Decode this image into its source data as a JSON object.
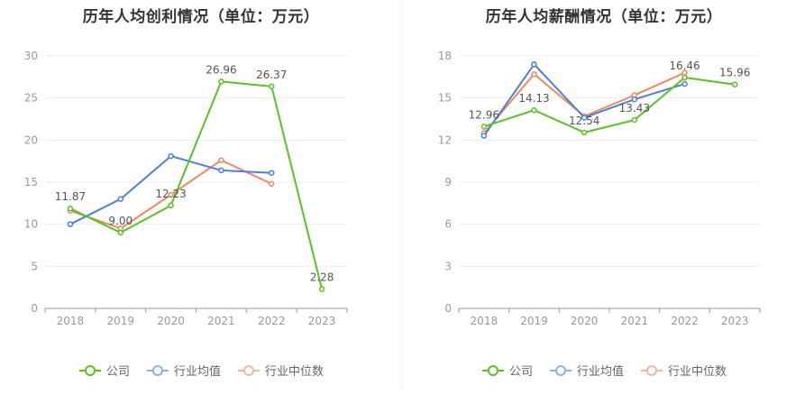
{
  "charts": [
    {
      "title": "历年人均创利情况（单位：万元）",
      "legend": [
        "公司",
        "行业均值",
        "行业中位数"
      ],
      "colors": [
        "#58c322",
        "#4a7fe0",
        "#f08a5d"
      ]
    },
    {
      "title": "历年人均薪酬情况（单位：万元）",
      "legend": [
        "公司",
        "行业均值",
        "行业中位数"
      ],
      "colors": [
        "#58c322",
        "#4a7fe0",
        "#f08a5d"
      ]
    }
  ],
  "chart_data": [
    {
      "type": "line",
      "title": "历年人均创利情况（单位：万元）",
      "categories": [
        "2018",
        "2019",
        "2020",
        "2021",
        "2022",
        "2023"
      ],
      "ylim": [
        0,
        30
      ],
      "yticks": [
        0,
        5,
        10,
        15,
        20,
        25,
        30
      ],
      "grid": true,
      "legend_position": "bottom",
      "series": [
        {
          "name": "公司",
          "values": [
            11.87,
            9.0,
            12.23,
            26.96,
            26.37,
            2.28
          ],
          "labels": [
            "11.87",
            "9.00",
            "12.23",
            "26.96",
            "26.37",
            "2.28"
          ]
        },
        {
          "name": "行业均值",
          "values": [
            10.0,
            13.0,
            18.1,
            16.4,
            16.1,
            null
          ]
        },
        {
          "name": "行业中位数",
          "values": [
            11.6,
            9.5,
            13.5,
            17.6,
            14.8,
            null
          ]
        }
      ]
    },
    {
      "type": "line",
      "title": "历年人均薪酬情况（单位：万元）",
      "categories": [
        "2018",
        "2019",
        "2020",
        "2021",
        "2022",
        "2023"
      ],
      "ylim": [
        0,
        18
      ],
      "yticks": [
        0,
        3,
        6,
        9,
        12,
        15,
        18
      ],
      "grid": true,
      "legend_position": "bottom",
      "series": [
        {
          "name": "公司",
          "values": [
            12.96,
            14.13,
            12.54,
            13.43,
            16.46,
            15.96
          ],
          "labels": [
            "12.96",
            "14.13",
            "12.54",
            "13.43",
            "16.46",
            "15.96"
          ]
        },
        {
          "name": "行业均值",
          "values": [
            12.3,
            17.4,
            13.6,
            14.9,
            16.0,
            null
          ]
        },
        {
          "name": "行业中位数",
          "values": [
            12.5,
            16.7,
            13.7,
            15.2,
            16.8,
            null
          ]
        }
      ]
    }
  ]
}
